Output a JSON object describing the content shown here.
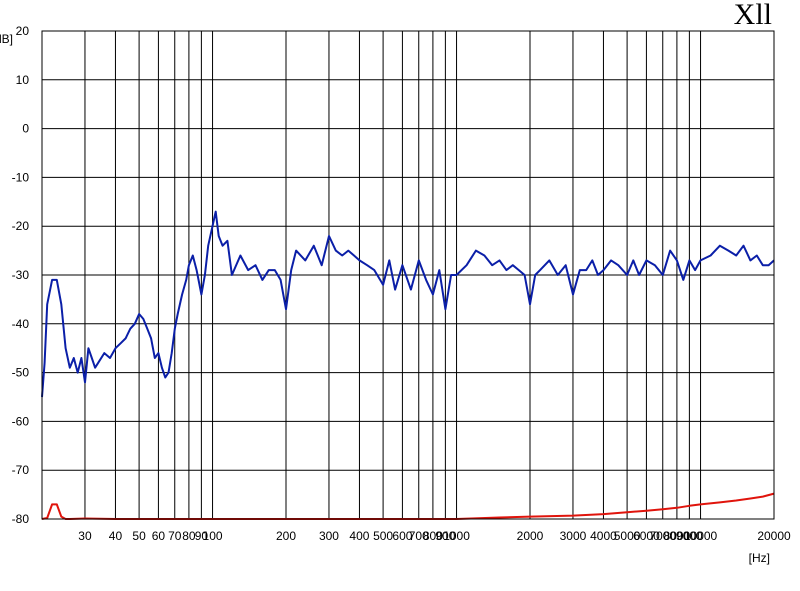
{
  "corner_label": "Xll",
  "chart_data": {
    "type": "line",
    "title": "",
    "xlabel": "[Hz]",
    "ylabel": "[dB]",
    "xscale": "log",
    "xlim": [
      20,
      20000
    ],
    "ylim": [
      -80,
      20
    ],
    "grid": true,
    "x_ticks": [
      30,
      40,
      50,
      60,
      70,
      80,
      90,
      100,
      200,
      300,
      400,
      500,
      600,
      700,
      800,
      900,
      1000,
      2000,
      3000,
      4000,
      5000,
      6000,
      7000,
      8000,
      9000,
      10000,
      20000
    ],
    "x_tick_labels": [
      "30",
      "40",
      "50",
      "60",
      "70",
      "80",
      "90",
      "100",
      "200",
      "300",
      "400",
      "500",
      "600",
      "700",
      "800",
      "900",
      "1000",
      "2000",
      "3000",
      "4000",
      "5000",
      "6000",
      "7000",
      "8000",
      "9000",
      "10000",
      "20000"
    ],
    "y_ticks": [
      -80,
      -70,
      -60,
      -50,
      -40,
      -30,
      -20,
      -10,
      0,
      10,
      20
    ],
    "y_tick_labels": [
      "-80",
      "-70",
      "-60",
      "-50",
      "-40",
      "-30",
      "-20",
      "-10",
      "0",
      "10",
      "20"
    ],
    "series": [
      {
        "color": "#0b1fa8",
        "x": [
          20,
          20.5,
          21,
          22,
          23,
          24,
          25,
          26,
          27,
          28,
          29,
          30,
          31,
          32,
          33,
          34,
          36,
          38,
          40,
          42,
          44,
          46,
          48,
          50,
          52,
          54,
          56,
          58,
          60,
          62,
          64,
          66,
          68,
          70,
          72,
          75,
          78,
          80,
          83,
          86,
          90,
          93,
          96,
          100,
          103,
          106,
          110,
          115,
          120,
          130,
          140,
          150,
          160,
          170,
          180,
          190,
          200,
          210,
          220,
          240,
          260,
          280,
          300,
          320,
          340,
          360,
          380,
          400,
          430,
          460,
          500,
          530,
          560,
          600,
          650,
          700,
          750,
          800,
          850,
          900,
          950,
          1000,
          1100,
          1200,
          1300,
          1400,
          1500,
          1600,
          1700,
          1800,
          1900,
          2000,
          2100,
          2200,
          2400,
          2600,
          2800,
          3000,
          3200,
          3400,
          3600,
          3800,
          4000,
          4300,
          4600,
          5000,
          5300,
          5600,
          6000,
          6500,
          7000,
          7500,
          8000,
          8500,
          9000,
          9500,
          10000,
          11000,
          12000,
          13000,
          14000,
          15000,
          16000,
          17000,
          18000,
          19000,
          20000
        ],
        "y": [
          -55,
          -48,
          -36,
          -31,
          -31,
          -36,
          -45,
          -49,
          -47,
          -50,
          -47,
          -52,
          -45,
          -47,
          -49,
          -48,
          -46,
          -47,
          -45,
          -44,
          -43,
          -41,
          -40,
          -38,
          -39,
          -41,
          -43,
          -47,
          -46,
          -49,
          -51,
          -50,
          -46,
          -41,
          -38,
          -34,
          -31,
          -28,
          -26,
          -29,
          -34,
          -30,
          -24,
          -20,
          -17,
          -22,
          -24,
          -23,
          -30,
          -26,
          -29,
          -28,
          -31,
          -29,
          -29,
          -31,
          -37,
          -29,
          -25,
          -27,
          -24,
          -28,
          -22,
          -25,
          -26,
          -25,
          -26,
          -27,
          -28,
          -29,
          -32,
          -27,
          -33,
          -28,
          -33,
          -27,
          -31,
          -34,
          -29,
          -37,
          -30,
          -30,
          -28,
          -25,
          -26,
          -28,
          -27,
          -29,
          -28,
          -29,
          -30,
          -36,
          -30,
          -29,
          -27,
          -30,
          -28,
          -34,
          -29,
          -29,
          -27,
          -30,
          -29,
          -27,
          -28,
          -30,
          -27,
          -30,
          -27,
          -28,
          -30,
          -25,
          -27,
          -31,
          -27,
          -29,
          -27,
          -26,
          -24,
          -25,
          -26,
          -24,
          -27,
          -26,
          -28,
          -28,
          -27
        ]
      },
      {
        "color": "#e0140c",
        "x": [
          20,
          21,
          22,
          23,
          24,
          25,
          26,
          30,
          40,
          60,
          100,
          200,
          400,
          700,
          1000,
          1500,
          2000,
          3000,
          4000,
          5000,
          6000,
          7000,
          8000,
          9000,
          10000,
          12000,
          14000,
          16000,
          18000,
          20000
        ],
        "y": [
          -80,
          -79.8,
          -77,
          -77,
          -79.5,
          -80,
          -80,
          -79.9,
          -80,
          -80,
          -80,
          -80,
          -80,
          -80,
          -80,
          -79.7,
          -79.5,
          -79.3,
          -79,
          -78.6,
          -78.3,
          -78,
          -77.7,
          -77.3,
          -77,
          -76.6,
          -76.2,
          -75.8,
          -75.4,
          -74.8
        ]
      }
    ]
  }
}
